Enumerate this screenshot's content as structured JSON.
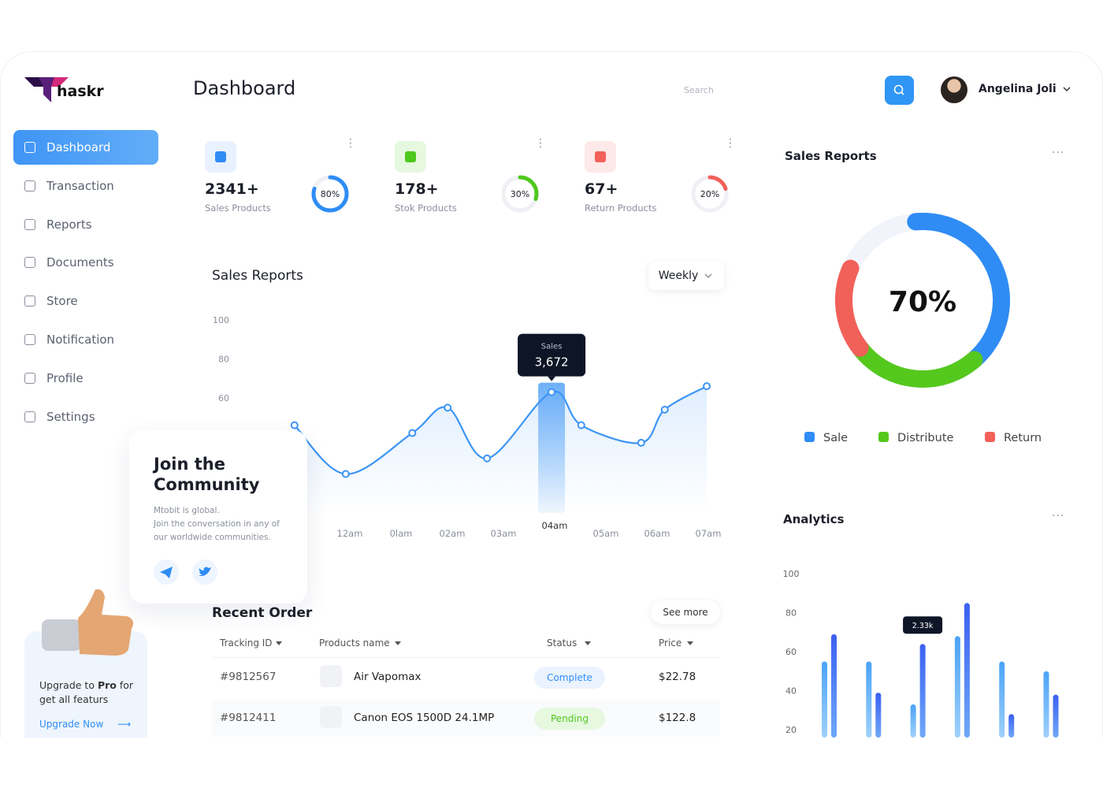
{
  "brand": "haskr",
  "page_title": "Dashboard",
  "search_placeholder": "Search",
  "user_name": "Angelina Joli",
  "nav": [
    "Dashboard",
    "Transaction",
    "Reports",
    "Documents",
    "Store",
    "Notification",
    "Profile",
    "Settings"
  ],
  "stats": [
    {
      "value": "2341+",
      "label": "Sales Products",
      "percent": 80,
      "percent_label": "80%",
      "color": "#2f8cf5"
    },
    {
      "value": "178+",
      "label": "Stok Products",
      "percent": 30,
      "percent_label": "30%",
      "color": "#4fc81e"
    },
    {
      "value": "67+",
      "label": "Return Products",
      "percent": 20,
      "percent_label": "20%",
      "color": "#f2605a"
    }
  ],
  "sales_chart": {
    "type": "line",
    "title": "Sales Reports",
    "period": "Weekly",
    "color": "#3d95f5",
    "x": [
      -1.08,
      -0.08,
      1.22,
      1.91,
      2.68,
      3.94,
      4.52,
      5.69,
      6.15,
      6.97
    ],
    "values": [
      46,
      21,
      42,
      55,
      29,
      63,
      46,
      37,
      54,
      66
    ],
    "xlim": [
      -1.65,
      7.6
    ],
    "xticks": [
      {
        "value": 0,
        "label": "12am"
      },
      {
        "value": 1,
        "label": "0lam"
      },
      {
        "value": 2,
        "label": "02am"
      },
      {
        "value": 3,
        "label": "03am"
      },
      {
        "value": 4,
        "label": "04am"
      },
      {
        "value": 5,
        "label": "05am"
      },
      {
        "value": 6,
        "label": "06am"
      },
      {
        "value": 7,
        "label": "07am"
      }
    ],
    "ylim": [
      0,
      100
    ],
    "yticks": [
      60,
      80,
      100
    ],
    "tooltip": {
      "label": "Sales",
      "value": "3,672"
    }
  },
  "community": {
    "title": [
      "Join the",
      "Community"
    ],
    "text": [
      "Mtobit is global.",
      "Join the conversation in any of",
      "our worldwide communities."
    ]
  },
  "upgrade": {
    "text": [
      "Upgrade to",
      "Pro",
      "for",
      "get all featurs"
    ],
    "link": "Upgrade Now"
  },
  "recent_order": {
    "title": "Recent Order",
    "see_more": "See more",
    "headers": [
      "Tracking ID",
      "Products name",
      "Status",
      "Price"
    ],
    "rows": [
      [
        "#9812567",
        "Air Vapomax",
        "Complete",
        "$22.78"
      ],
      [
        "#9812411",
        "Canon EOS 1500D 24.1MP",
        "Pending",
        "$122.8"
      ]
    ]
  },
  "sales_donut": {
    "type": "pie",
    "title": "Sales Reports",
    "center_label": "70%",
    "categories": [
      "Sale",
      "Distribute",
      "Return"
    ],
    "values": [
      40,
      26,
      17
    ],
    "colors": [
      "#2f8cf5",
      "#55c81e",
      "#f2605a"
    ]
  },
  "analytics": {
    "type": "bar",
    "title": "Analytics",
    "categories": [
      null,
      null,
      null,
      null,
      null,
      null
    ],
    "series": [
      {
        "color": "#4aa3f7",
        "values": [
          55,
          55,
          33,
          68,
          55,
          50
        ]
      },
      {
        "color": "#3b5ff2",
        "values": [
          69,
          39,
          64,
          85,
          28,
          38
        ]
      }
    ],
    "ylim": [
      16,
      100
    ],
    "yticks": [
      20,
      40,
      60,
      80,
      100
    ],
    "tooltip": "2.33k"
  }
}
